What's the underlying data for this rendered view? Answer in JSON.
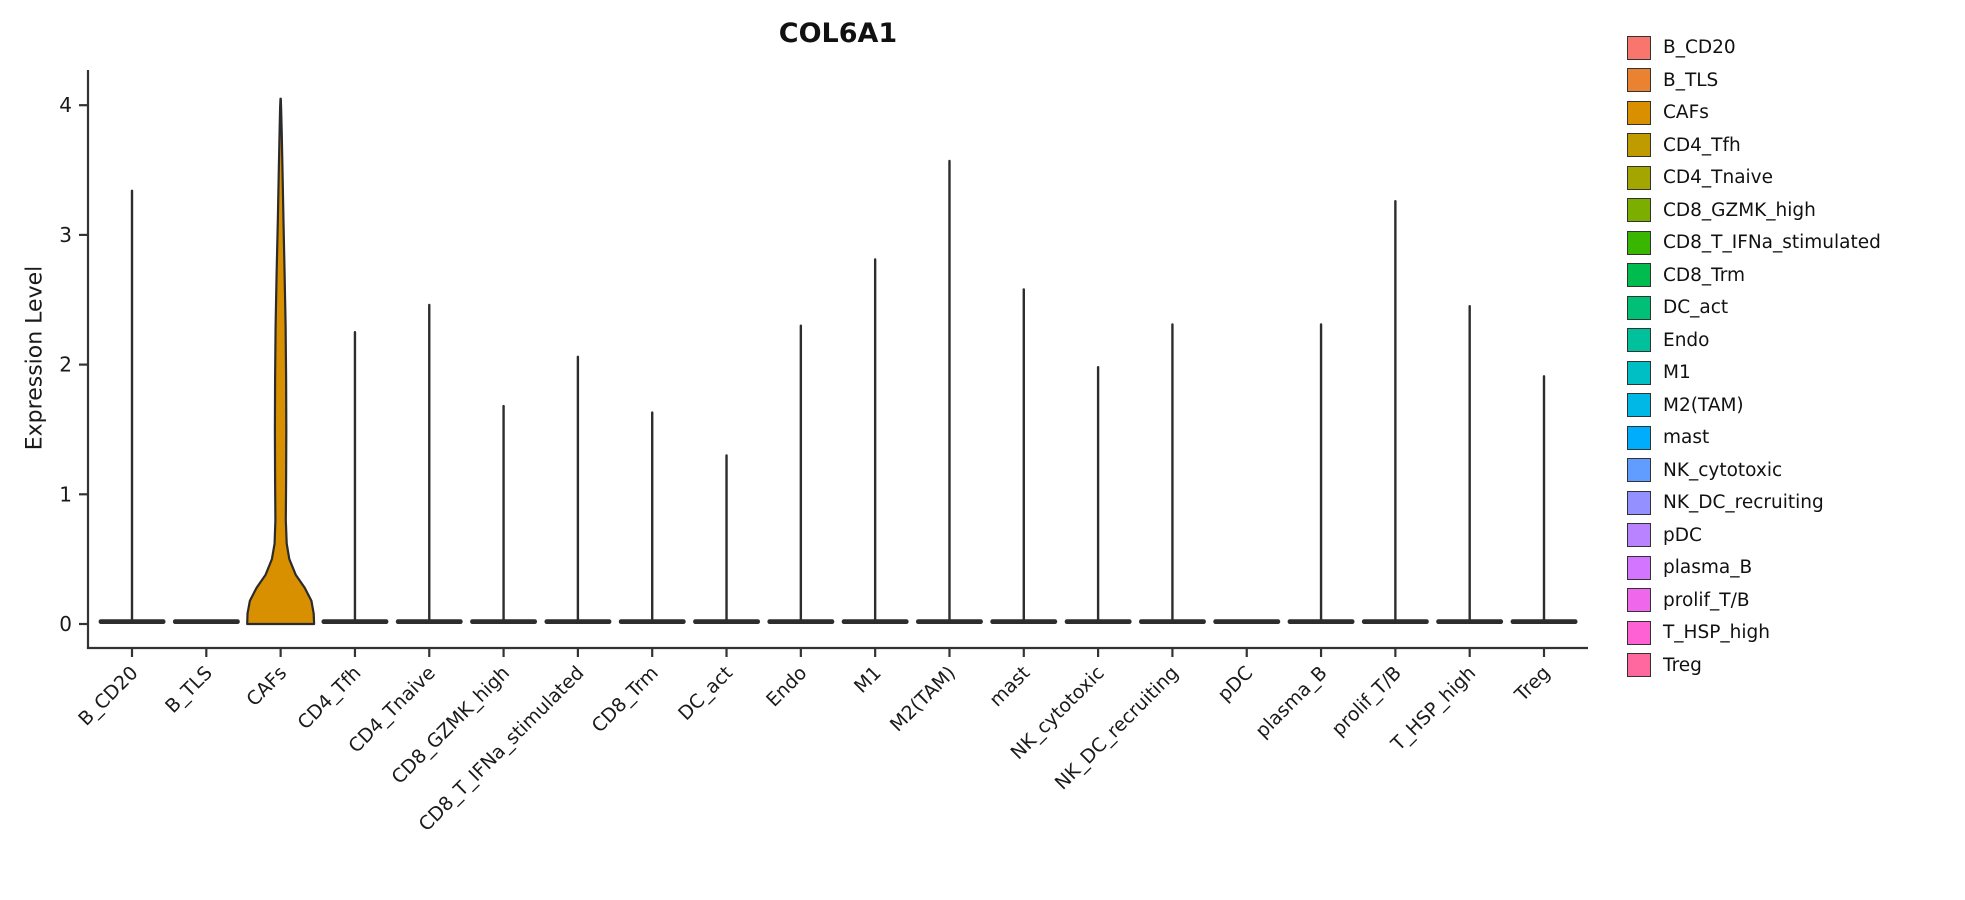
{
  "chart_data": {
    "type": "violin",
    "title": "COL6A1",
    "ylabel": "Expression Level",
    "xlabel": "",
    "grid": false,
    "legend_position": "right",
    "y_ticks": [
      0,
      1,
      2,
      3,
      4
    ],
    "ylim": [
      -0.185,
      4.27
    ],
    "axis_color": "#333333",
    "mark_color": "#2d2d2d",
    "violin_width_fraction": 0.9,
    "categories": [
      "B_CD20",
      "B_TLS",
      "CAFs",
      "CD4_Tfh",
      "CD4_Tnaive",
      "CD8_GZMK_high",
      "CD8_T_IFNa_stimulated",
      "CD8_Trm",
      "DC_act",
      "Endo",
      "M1",
      "M2(TAM)",
      "mast",
      "NK_cytotoxic",
      "NK_DC_recruiting",
      "pDC",
      "plasma_B",
      "prolif_T/B",
      "T_HSP_high",
      "Treg"
    ],
    "series": [
      {
        "name": "B_CD20",
        "color": "#F8766D",
        "max_expression": 3.34
      },
      {
        "name": "B_TLS",
        "color": "#EA8331",
        "max_expression": 0
      },
      {
        "name": "CAFs",
        "color": "#D89000",
        "max_expression": 4.05
      },
      {
        "name": "CD4_Tfh",
        "color": "#C09B00",
        "max_expression": 2.25
      },
      {
        "name": "CD4_Tnaive",
        "color": "#A3A500",
        "max_expression": 2.46
      },
      {
        "name": "CD8_GZMK_high",
        "color": "#7CAE00",
        "max_expression": 1.68
      },
      {
        "name": "CD8_T_IFNa_stimulated",
        "color": "#39B600",
        "max_expression": 2.06
      },
      {
        "name": "CD8_Trm",
        "color": "#00BB4E",
        "max_expression": 1.63
      },
      {
        "name": "DC_act",
        "color": "#00C078",
        "max_expression": 1.3
      },
      {
        "name": "Endo",
        "color": "#00C19C",
        "max_expression": 2.3
      },
      {
        "name": "M1",
        "color": "#00BFC4",
        "max_expression": 2.81
      },
      {
        "name": "M2(TAM)",
        "color": "#00B8E5",
        "max_expression": 3.57
      },
      {
        "name": "mast",
        "color": "#00ACFC",
        "max_expression": 2.58
      },
      {
        "name": "NK_cytotoxic",
        "color": "#619CFF",
        "max_expression": 1.98
      },
      {
        "name": "NK_DC_recruiting",
        "color": "#9590FF",
        "max_expression": 2.31
      },
      {
        "name": "pDC",
        "color": "#B983FF",
        "max_expression": 0
      },
      {
        "name": "plasma_B",
        "color": "#D475FF",
        "max_expression": 2.31
      },
      {
        "name": "prolif_T/B",
        "color": "#EF67EB",
        "max_expression": 3.26
      },
      {
        "name": "T_HSP_high",
        "color": "#FD61D3",
        "max_expression": 2.45
      },
      {
        "name": "Treg",
        "color": "#FF689E",
        "max_expression": 1.91
      }
    ],
    "expressed_violin": {
      "category": "CAFs",
      "max_value": 4.05,
      "density_profile": [
        [
          0.0,
          1.0
        ],
        [
          0.08,
          0.99
        ],
        [
          0.18,
          0.92
        ],
        [
          0.28,
          0.72
        ],
        [
          0.38,
          0.45
        ],
        [
          0.5,
          0.26
        ],
        [
          0.62,
          0.18
        ],
        [
          0.8,
          0.155
        ],
        [
          1.1,
          0.165
        ],
        [
          1.5,
          0.17
        ],
        [
          1.9,
          0.165
        ],
        [
          2.3,
          0.15
        ],
        [
          2.7,
          0.12
        ],
        [
          3.1,
          0.085
        ],
        [
          3.5,
          0.055
        ],
        [
          3.8,
          0.032
        ],
        [
          3.98,
          0.015
        ],
        [
          4.05,
          0.004
        ]
      ]
    }
  }
}
